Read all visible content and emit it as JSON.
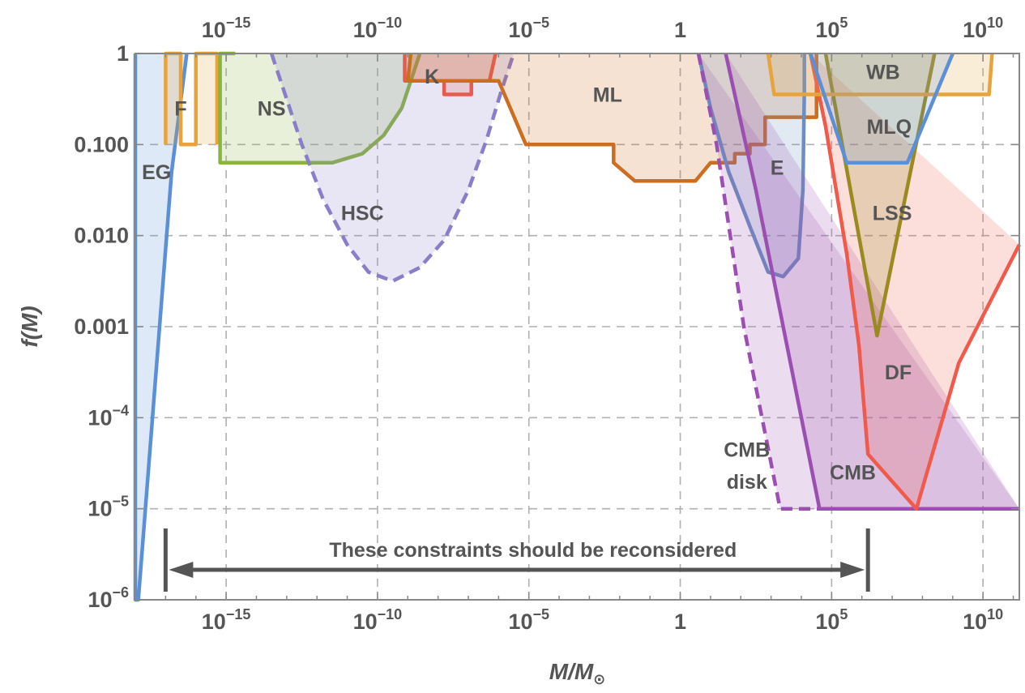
{
  "chart_data": {
    "type": "area",
    "title": "",
    "xlabel": "M/M",
    "xlabel_symbol": "⊙",
    "ylabel": "f(M)",
    "x_scale": "log10",
    "y_scale": "log10",
    "xlim_log10": [
      -18,
      11.2
    ],
    "ylim_log10": [
      -6,
      0
    ],
    "grid": true,
    "x_ticks": [
      {
        "exp": -15,
        "base": "10",
        "sup": "−15"
      },
      {
        "exp": -10,
        "base": "10",
        "sup": "−10"
      },
      {
        "exp": -5,
        "base": "10",
        "sup": "−5"
      },
      {
        "exp": 0,
        "base": "1",
        "sup": ""
      },
      {
        "exp": 5,
        "base": "10",
        "sup": "5"
      },
      {
        "exp": 10,
        "base": "10",
        "sup": "10"
      }
    ],
    "y_ticks": [
      {
        "exp": 0,
        "base": "1",
        "sup": ""
      },
      {
        "exp": -1,
        "base": "0.100",
        "sup": ""
      },
      {
        "exp": -2,
        "base": "0.010",
        "sup": ""
      },
      {
        "exp": -3,
        "base": "0.001",
        "sup": ""
      },
      {
        "exp": -4,
        "base": "10",
        "sup": "−4"
      },
      {
        "exp": -5,
        "base": "10",
        "sup": "−5"
      },
      {
        "exp": -6,
        "base": "10",
        "sup": "−6"
      }
    ],
    "series": [
      {
        "name": "EG",
        "color": "#5b8fd6",
        "dashed": false,
        "points": [
          [
            -18,
            0
          ],
          [
            -18,
            -6
          ],
          [
            -17.9,
            -6
          ],
          [
            -16.8,
            -1.3
          ],
          [
            -16.3,
            0
          ]
        ]
      },
      {
        "name": "F",
        "color": "#e8a33c",
        "dashed": false,
        "points": [
          [
            -17,
            -1
          ],
          [
            -17,
            0
          ],
          [
            -16.5,
            0
          ],
          [
            -16.5,
            -1
          ],
          [
            -16,
            -1
          ],
          [
            -16,
            0
          ],
          [
            -15.3,
            0
          ],
          [
            -15.3,
            -1
          ]
        ]
      },
      {
        "name": "NS",
        "color": "#8ab33f",
        "dashed": false,
        "points": [
          [
            -14.7,
            0
          ],
          [
            -15.2,
            0
          ],
          [
            -15.2,
            -1.2
          ],
          [
            -11.5,
            -1.2
          ],
          [
            -10.5,
            -1.1
          ],
          [
            -9.8,
            -0.9
          ],
          [
            -9.2,
            -0.6
          ],
          [
            -8.6,
            0
          ]
        ]
      },
      {
        "name": "HSC",
        "color": "#8b7ec8",
        "dashed": true,
        "points": [
          [
            -13.5,
            0
          ],
          [
            -13,
            -0.5
          ],
          [
            -12.5,
            -1
          ],
          [
            -11.8,
            -1.6
          ],
          [
            -11,
            -2.1
          ],
          [
            -10.3,
            -2.4
          ],
          [
            -9.5,
            -2.5
          ],
          [
            -8.6,
            -2.35
          ],
          [
            -7.8,
            -2.05
          ],
          [
            -7,
            -1.5
          ],
          [
            -6.4,
            -0.95
          ],
          [
            -5.9,
            -0.4
          ],
          [
            -5.5,
            0
          ]
        ]
      },
      {
        "name": "K",
        "color": "#e85a4f",
        "dashed": false,
        "points": [
          [
            -9.1,
            0
          ],
          [
            -9.1,
            -0.3
          ],
          [
            -7.8,
            -0.3
          ],
          [
            -7.8,
            -0.45
          ],
          [
            -6.9,
            -0.45
          ],
          [
            -6.9,
            -0.3
          ],
          [
            -6.3,
            -0.3
          ],
          [
            -6.1,
            0
          ]
        ]
      },
      {
        "name": "ML",
        "color": "#cc6e22",
        "dashed": false,
        "points": [
          [
            -8.9,
            0
          ],
          [
            -9,
            -0.3
          ],
          [
            -7.5,
            -0.3
          ],
          [
            -6.9,
            -0.3
          ],
          [
            -6,
            -0.3
          ],
          [
            -5.1,
            -1
          ],
          [
            -2.2,
            -1
          ],
          [
            -2.2,
            -1.2
          ],
          [
            -1.5,
            -1.4
          ],
          [
            0.5,
            -1.4
          ],
          [
            1,
            -1.2
          ],
          [
            1.8,
            -1.2
          ],
          [
            1.8,
            -1.1
          ],
          [
            2.3,
            -1.1
          ],
          [
            2.3,
            -1
          ],
          [
            2.8,
            -1
          ],
          [
            2.8,
            -0.7
          ],
          [
            4.5,
            -0.7
          ],
          [
            4.5,
            0
          ]
        ]
      },
      {
        "name": "E",
        "color": "#6b8fc2",
        "dashed": false,
        "points": [
          [
            0.6,
            0
          ],
          [
            1,
            -0.6
          ],
          [
            1.6,
            -1.3
          ],
          [
            2.3,
            -1.9
          ],
          [
            2.9,
            -2.4
          ],
          [
            3.4,
            -2.45
          ],
          [
            3.9,
            -2.25
          ],
          [
            4.05,
            -1.5
          ],
          [
            4.1,
            -0.4
          ],
          [
            4.1,
            0
          ]
        ]
      },
      {
        "name": "CMB disk",
        "color": "#9b4fb0",
        "dashed": true,
        "points": [
          [
            0.6,
            0
          ],
          [
            1.2,
            -1
          ],
          [
            2.1,
            -3
          ],
          [
            3.3,
            -5
          ],
          [
            3.6,
            -5
          ],
          [
            11.2,
            -5
          ]
        ]
      },
      {
        "name": "CMB",
        "color": "#9b4fb0",
        "dashed": false,
        "points": [
          [
            1.5,
            0
          ],
          [
            2.5,
            -1.5
          ],
          [
            3.7,
            -3.5
          ],
          [
            4.6,
            -5
          ],
          [
            11.2,
            -5
          ]
        ]
      },
      {
        "name": "DF",
        "color": "#f05a4a",
        "dashed": false,
        "points": [
          [
            4.3,
            0
          ],
          [
            4.8,
            -0.8
          ],
          [
            5.5,
            -2.2
          ],
          [
            5.9,
            -3.2
          ],
          [
            6.2,
            -4.4
          ],
          [
            7.8,
            -5
          ],
          [
            9.2,
            -3.4
          ],
          [
            11.2,
            -2.1
          ]
        ]
      },
      {
        "name": "LSS",
        "color": "#9a8a1f",
        "dashed": false,
        "points": [
          [
            4.8,
            0
          ],
          [
            6.5,
            -3.1
          ],
          [
            8.4,
            0
          ]
        ]
      },
      {
        "name": "WB",
        "color": "#e8a33c",
        "dashed": false,
        "points": [
          [
            2.9,
            0
          ],
          [
            3.1,
            -0.45
          ],
          [
            10.2,
            -0.45
          ],
          [
            10.3,
            0
          ]
        ]
      },
      {
        "name": "MLQ",
        "color": "#5b8fd6",
        "dashed": false,
        "points": [
          [
            4.3,
            0
          ],
          [
            5.5,
            -1.2
          ],
          [
            7.5,
            -1.2
          ],
          [
            9.0,
            0
          ]
        ]
      }
    ],
    "region_labels": [
      {
        "text": "EG"
      },
      {
        "text": "F"
      },
      {
        "text": "NS"
      },
      {
        "text": "HSC"
      },
      {
        "text": "K"
      },
      {
        "text": "ML"
      },
      {
        "text": "E"
      },
      {
        "text": "WB"
      },
      {
        "text": "MLQ"
      },
      {
        "text": "LSS"
      },
      {
        "text": "DF"
      },
      {
        "text": "CMB"
      },
      {
        "text": "disk"
      },
      {
        "text": "CMB"
      }
    ],
    "annotation": {
      "text": "These constraints should be reconsidered",
      "x_start_log10": -17,
      "x_end_log10": 6.2
    }
  }
}
